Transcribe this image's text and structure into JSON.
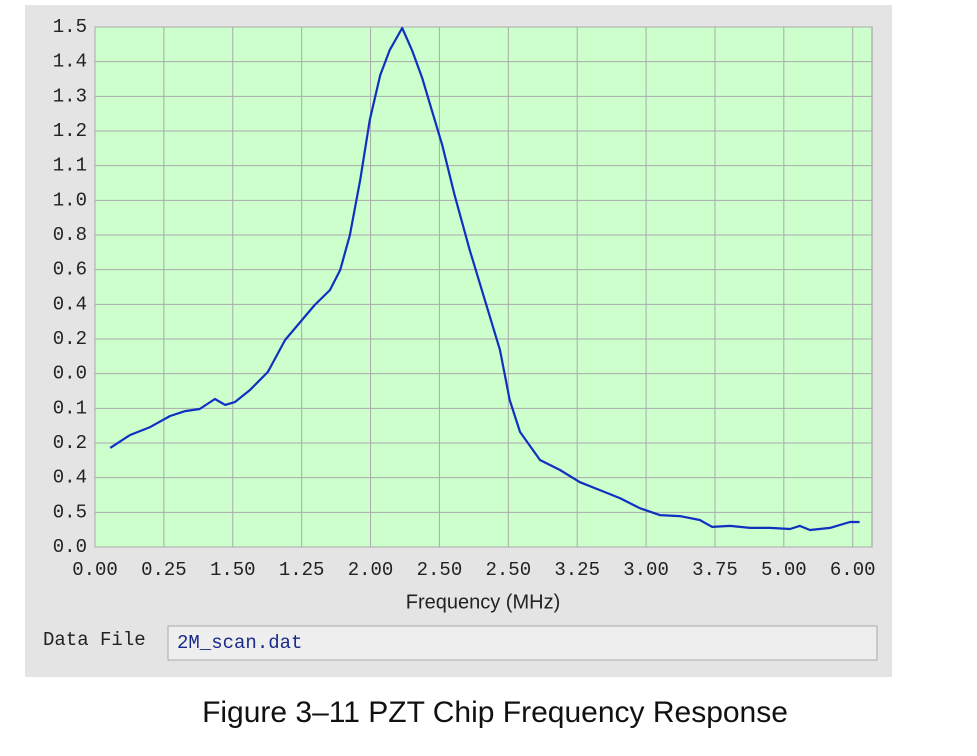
{
  "chart_data": {
    "type": "line",
    "xlabel": "Frequency (MHz)",
    "xlim": [
      0,
      11.28
    ],
    "ylim": [
      0,
      15
    ],
    "xticks": [
      {
        "value": 0,
        "label": "0.00"
      },
      {
        "value": 1,
        "label": "0.25"
      },
      {
        "value": 2,
        "label": "1.50"
      },
      {
        "value": 3,
        "label": "1.25"
      },
      {
        "value": 4,
        "label": "2.00"
      },
      {
        "value": 5,
        "label": "2.50"
      },
      {
        "value": 6,
        "label": "2.50"
      },
      {
        "value": 7,
        "label": "3.25"
      },
      {
        "value": 8,
        "label": "3.00"
      },
      {
        "value": 9,
        "label": "3.75"
      },
      {
        "value": 10,
        "label": "5.00"
      },
      {
        "value": 11,
        "label": "6.00"
      }
    ],
    "yticks": [
      {
        "value": 0,
        "label": "0.0"
      },
      {
        "value": 1,
        "label": "0.5"
      },
      {
        "value": 2,
        "label": "0.4"
      },
      {
        "value": 3,
        "label": "0.2"
      },
      {
        "value": 4,
        "label": "0.1"
      },
      {
        "value": 5,
        "label": "0.0"
      },
      {
        "value": 6,
        "label": "0.2"
      },
      {
        "value": 7,
        "label": "0.4"
      },
      {
        "value": 8,
        "label": "0.6"
      },
      {
        "value": 9,
        "label": "0.8"
      },
      {
        "value": 10,
        "label": "1.0"
      },
      {
        "value": 11,
        "label": "1.1"
      },
      {
        "value": 12,
        "label": "1.2"
      },
      {
        "value": 13,
        "label": "1.3"
      },
      {
        "value": 14,
        "label": "1.4"
      },
      {
        "value": 15,
        "label": "1.5"
      }
    ],
    "grid": true,
    "x": [
      0.22,
      0.51,
      0.8,
      1.09,
      1.31,
      1.52,
      1.74,
      1.89,
      2.03,
      2.25,
      2.51,
      2.76,
      2.98,
      3.19,
      3.41,
      3.56,
      3.7,
      3.85,
      3.99,
      4.14,
      4.28,
      4.46,
      4.6,
      4.75,
      4.89,
      5.04,
      5.22,
      5.44,
      5.66,
      5.88,
      6.02,
      6.17,
      6.46,
      6.75,
      7.04,
      7.33,
      7.62,
      7.91,
      8.2,
      8.49,
      8.78,
      8.96,
      9.22,
      9.51,
      9.8,
      10.09,
      10.23,
      10.38,
      10.67,
      10.96,
      11.1
    ],
    "series": [
      {
        "color": "#1030c0",
        "values": [
          2.86,
          3.23,
          3.46,
          3.78,
          3.92,
          3.98,
          4.27,
          4.1,
          4.18,
          4.53,
          5.05,
          5.97,
          6.49,
          6.98,
          7.41,
          7.99,
          9.0,
          10.59,
          12.32,
          13.61,
          14.34,
          14.97,
          14.34,
          13.53,
          12.6,
          11.6,
          10.15,
          8.57,
          7.12,
          5.68,
          4.24,
          3.32,
          2.51,
          2.22,
          1.87,
          1.64,
          1.41,
          1.12,
          0.92,
          0.89,
          0.78,
          0.58,
          0.61,
          0.55,
          0.55,
          0.52,
          0.61,
          0.49,
          0.55,
          0.72,
          0.72
        ]
      }
    ]
  },
  "data_file": {
    "label": "Data File",
    "value": "2M_scan.dat"
  },
  "figure_caption": "Figure 3–11  PZT Chip Frequency Response"
}
